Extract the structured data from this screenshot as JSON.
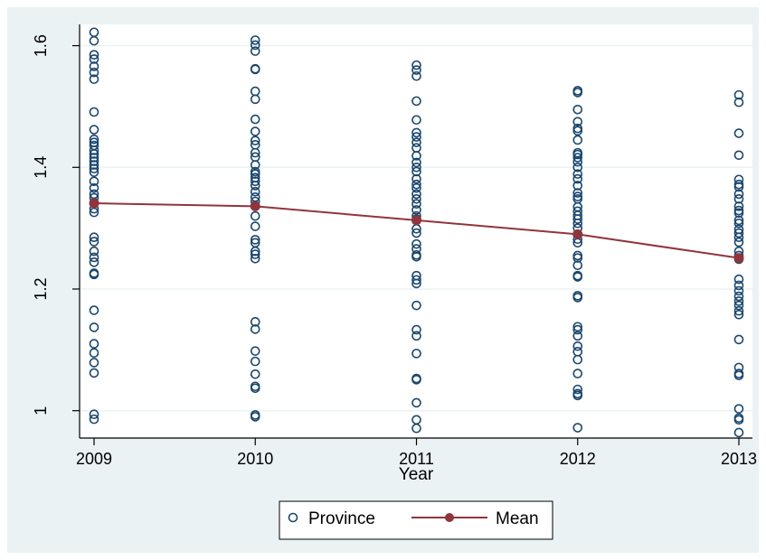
{
  "chart_data": {
    "type": "scatter",
    "title": "",
    "xlabel": "Year",
    "ylabel": "",
    "x_ticks": [
      "2009",
      "2010",
      "2011",
      "2012",
      "2013"
    ],
    "y_ticks": [
      "1",
      "1.2",
      "1.4",
      "1.6"
    ],
    "xlim": [
      2009,
      2013
    ],
    "ylim": [
      0.955,
      1.635
    ],
    "grid": true,
    "legend_position": "bottom",
    "colors": {
      "province": "#1a476f",
      "mean": "#90353b",
      "plot_bg": "#ffffff",
      "outer_bg": "#eaf2f3",
      "grid": "#eaf2f3"
    },
    "series": [
      {
        "name": "Province",
        "marker": "hollow-circle",
        "points": [
          {
            "x": 2009,
            "values": [
              1.622,
              1.608,
              1.585,
              1.578,
              1.566,
              1.556,
              1.545,
              1.491,
              1.462,
              1.446,
              1.441,
              1.436,
              1.428,
              1.422,
              1.416,
              1.41,
              1.404,
              1.398,
              1.392,
              1.377,
              1.366,
              1.356,
              1.35,
              1.342,
              1.332,
              1.326,
              1.285,
              1.278,
              1.262,
              1.252,
              1.244,
              1.226,
              1.224,
              1.165,
              1.137,
              1.11,
              1.095,
              1.079,
              1.062,
              0.994,
              0.986
            ]
          },
          {
            "x": 2010,
            "values": [
              1.609,
              1.601,
              1.591,
              1.562,
              1.561,
              1.525,
              1.512,
              1.479,
              1.459,
              1.444,
              1.437,
              1.424,
              1.417,
              1.404,
              1.393,
              1.389,
              1.383,
              1.377,
              1.37,
              1.36,
              1.351,
              1.344,
              1.337,
              1.32,
              1.303,
              1.281,
              1.276,
              1.262,
              1.257,
              1.25,
              1.146,
              1.134,
              1.098,
              1.081,
              1.06,
              1.04,
              1.037,
              0.993,
              0.99
            ]
          },
          {
            "x": 2011,
            "values": [
              1.568,
              1.56,
              1.55,
              1.509,
              1.478,
              1.457,
              1.45,
              1.441,
              1.432,
              1.419,
              1.408,
              1.4,
              1.393,
              1.381,
              1.372,
              1.366,
              1.356,
              1.348,
              1.34,
              1.33,
              1.32,
              1.315,
              1.299,
              1.292,
              1.274,
              1.266,
              1.256,
              1.253,
              1.222,
              1.215,
              1.209,
              1.173,
              1.133,
              1.123,
              1.094,
              1.053,
              1.051,
              1.013,
              0.985,
              0.971
            ]
          },
          {
            "x": 2012,
            "values": [
              1.526,
              1.523,
              1.495,
              1.475,
              1.464,
              1.46,
              1.445,
              1.424,
              1.421,
              1.416,
              1.409,
              1.4,
              1.389,
              1.381,
              1.37,
              1.358,
              1.352,
              1.348,
              1.335,
              1.328,
              1.321,
              1.315,
              1.308,
              1.3,
              1.282,
              1.276,
              1.255,
              1.251,
              1.239,
              1.222,
              1.22,
              1.189,
              1.186,
              1.138,
              1.133,
              1.123,
              1.106,
              1.097,
              1.084,
              1.061,
              1.035,
              1.028,
              1.025,
              0.972
            ]
          },
          {
            "x": 2013,
            "values": [
              1.519,
              1.507,
              1.456,
              1.42,
              1.38,
              1.372,
              1.368,
              1.356,
              1.348,
              1.336,
              1.329,
              1.325,
              1.313,
              1.308,
              1.298,
              1.292,
              1.285,
              1.277,
              1.262,
              1.255,
              1.249,
              1.216,
              1.206,
              1.197,
              1.188,
              1.18,
              1.173,
              1.164,
              1.158,
              1.117,
              1.071,
              1.061,
              1.058,
              1.003,
              0.988,
              0.985,
              0.964
            ]
          }
        ]
      },
      {
        "name": "Mean",
        "marker": "solid-circle-line",
        "x": [
          2009,
          2010,
          2011,
          2012,
          2013
        ],
        "y": [
          1.341,
          1.336,
          1.313,
          1.29,
          1.251
        ]
      }
    ]
  }
}
